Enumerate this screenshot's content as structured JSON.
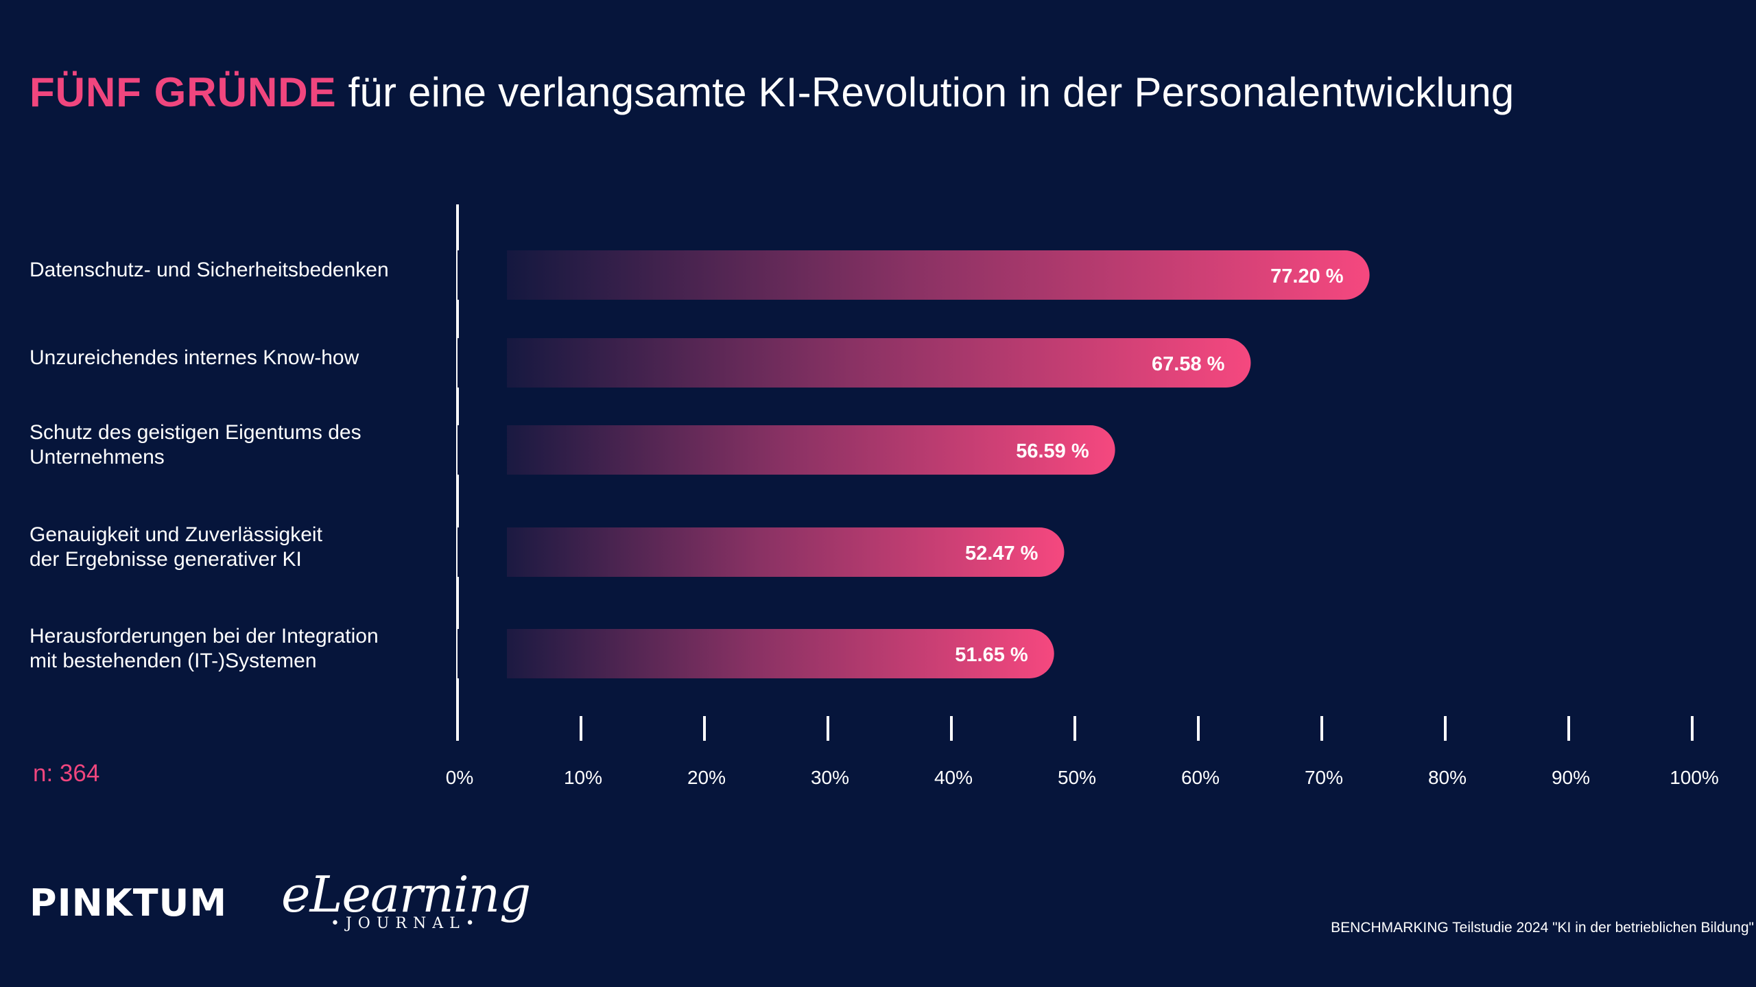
{
  "title": {
    "highlight": "FÜNF GRÜNDE",
    "rest": " für eine verlangsamte KI-Revolution in der Personalentwicklung"
  },
  "sample": "n: 364",
  "logos": {
    "pinktum": "PINKTUM",
    "elearning_main": "eLearning",
    "elearning_sub": "•JOURNAL•"
  },
  "source": "BENCHMARKING Teilstudie 2024 \"KI in der betrieblichen Bildung\"",
  "colors": {
    "background": "#06153b",
    "accent": "#f0467e",
    "bar_start": "#06153b",
    "bar_end": "#f5487f"
  },
  "chart_data": {
    "type": "bar",
    "orientation": "horizontal",
    "categories": [
      [
        "Datenschutz- und Sicherheitsbedenken"
      ],
      [
        "Unzureichendes internes Know-how"
      ],
      [
        "Schutz des geistigen Eigentums des",
        "Unternehmens"
      ],
      [
        "Genauigkeit und Zuverlässigkeit",
        "der Ergebnisse generativer KI"
      ],
      [
        "Herausforderungen bei der Integration",
        "mit bestehenden (IT-)Systemen"
      ]
    ],
    "values": [
      77.2,
      67.58,
      56.59,
      52.47,
      51.65
    ],
    "value_labels": [
      "77.20 %",
      "67.58 %",
      "56.59 %",
      "52.47 %",
      "51.65 %"
    ],
    "xlim": [
      0,
      100
    ],
    "xticks": [
      "0%",
      "10%",
      "20%",
      "30%",
      "40%",
      "50%",
      "60%",
      "70%",
      "80%",
      "90%",
      "100%"
    ],
    "grid": false,
    "legend": "none"
  }
}
